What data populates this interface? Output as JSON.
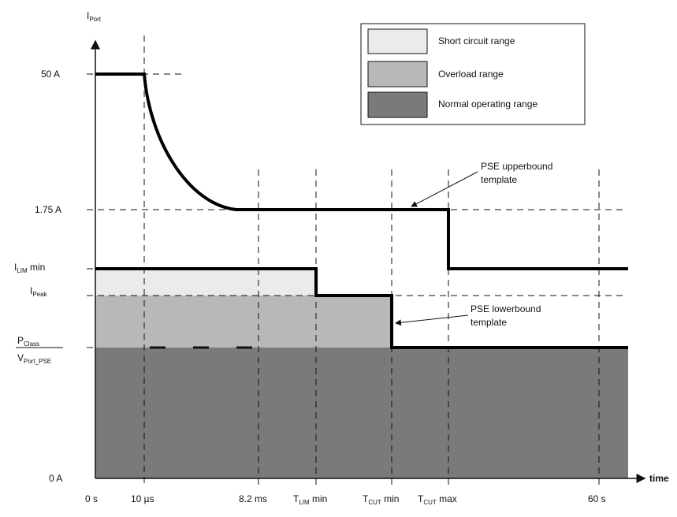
{
  "y_axis": {
    "main": "I",
    "sub": "Port"
  },
  "x_axis": {
    "label": "time"
  },
  "y_levels": {
    "fifty": "50 A",
    "one_seventy_five": "1.75 A",
    "ilim": {
      "main": "I",
      "sub": "LIM",
      "suffix": " min"
    },
    "ipeak": {
      "main": "I",
      "sub": "Peak"
    },
    "pclass_num": {
      "main": "P",
      "sub": "Class"
    },
    "pclass_den": {
      "main": "V",
      "sub": "Port_PSE"
    },
    "zero": "0 A"
  },
  "x_ticks": {
    "t0": "0 s",
    "t1": "10 µs",
    "t2": "8.2 ms",
    "tlim": {
      "main": "T",
      "sub": "LIM",
      "suffix": " min"
    },
    "tcutmin": {
      "main": "T",
      "sub": "CUT",
      "suffix": " min"
    },
    "tcutmax": {
      "main": "T",
      "sub": "CUT",
      "suffix": " max"
    },
    "t60": "60 s"
  },
  "legend": [
    {
      "label": "Short circuit range",
      "color": "#ebebeb"
    },
    {
      "label": "Overload range",
      "color": "#b8b8b8"
    },
    {
      "label": "Normal operating range",
      "color": "#7a7a7a"
    }
  ],
  "annotations": {
    "upper_line1": "PSE upperbound",
    "upper_line2": "template",
    "lower_line1": "PSE lowerbound",
    "lower_line2": "template"
  }
}
